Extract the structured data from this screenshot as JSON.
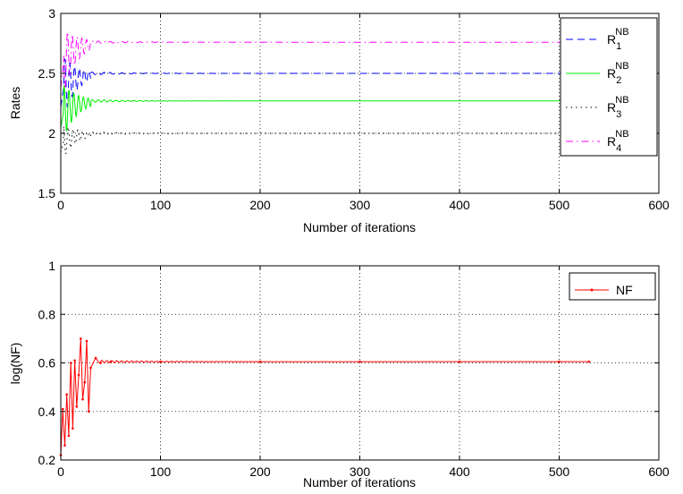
{
  "chart_data": [
    {
      "type": "line",
      "xlabel": "Number of iterations",
      "ylabel": "Rates",
      "xlim": [
        0,
        600
      ],
      "ylim": [
        1.5,
        3
      ],
      "xticks": [
        "0",
        "100",
        "200",
        "300",
        "400",
        "500",
        "600"
      ],
      "yticks": [
        "1.5",
        "2",
        "2.5",
        "3"
      ],
      "grid": true,
      "legend_position": "top-right",
      "series": [
        {
          "name": "R",
          "sub": "1",
          "sup": "NB",
          "color": "#0000ff",
          "dash": "8,5",
          "start": 2.22,
          "final": 2.5,
          "amp": 0.28,
          "x": [
            0,
            30,
            100,
            200,
            300,
            400,
            500,
            530
          ],
          "y": [
            2.22,
            2.5,
            2.5,
            2.5,
            2.5,
            2.5,
            2.5,
            2.5
          ]
        },
        {
          "name": "R",
          "sub": "2",
          "sup": "NB",
          "color": "#00ee00",
          "dash": "",
          "start": 2.05,
          "final": 2.27,
          "amp": 0.25,
          "x": [
            0,
            30,
            100,
            200,
            300,
            400,
            500,
            530
          ],
          "y": [
            2.05,
            2.27,
            2.27,
            2.27,
            2.27,
            2.27,
            2.27,
            2.27
          ]
        },
        {
          "name": "R",
          "sub": "3",
          "sup": "NB",
          "color": "#000000",
          "dash": "1.5,4",
          "start": 1.84,
          "final": 2.0,
          "amp": 0.15,
          "x": [
            0,
            30,
            100,
            200,
            300,
            400,
            500,
            530
          ],
          "y": [
            1.84,
            2.0,
            2.0,
            2.0,
            2.0,
            2.0,
            2.0,
            2.0
          ]
        },
        {
          "name": "R",
          "sub": "4",
          "sup": "NB",
          "color": "#ff00ff",
          "dash": "8,4,1.5,4",
          "start": 2.38,
          "final": 2.76,
          "amp": 0.3,
          "x": [
            0,
            30,
            100,
            200,
            300,
            400,
            500,
            530
          ],
          "y": [
            2.38,
            2.76,
            2.76,
            2.76,
            2.76,
            2.76,
            2.76,
            2.76
          ]
        }
      ]
    },
    {
      "type": "line",
      "xlabel": "Number of iterations",
      "ylabel": "log(NF)",
      "xlim": [
        0,
        600
      ],
      "ylim": [
        0.2,
        1
      ],
      "xticks": [
        "0",
        "100",
        "200",
        "300",
        "400",
        "500",
        "600"
      ],
      "yticks": [
        "0.2",
        "0.4",
        "0.6",
        "0.8",
        "1"
      ],
      "grid": true,
      "legend_position": "top-right",
      "series": [
        {
          "name": "NF",
          "color": "#ff0000",
          "marker": "dot",
          "final": 0.605,
          "x": [
            0,
            2,
            4,
            6,
            8,
            10,
            12,
            14,
            16,
            18,
            20,
            22,
            24,
            26,
            28,
            30,
            35,
            40,
            50,
            100,
            200,
            300,
            400,
            500,
            530
          ],
          "y": [
            0.22,
            0.41,
            0.26,
            0.47,
            0.3,
            0.6,
            0.33,
            0.61,
            0.42,
            0.55,
            0.7,
            0.45,
            0.52,
            0.69,
            0.4,
            0.58,
            0.62,
            0.6,
            0.605,
            0.605,
            0.605,
            0.605,
            0.605,
            0.605,
            0.605
          ]
        }
      ]
    }
  ]
}
